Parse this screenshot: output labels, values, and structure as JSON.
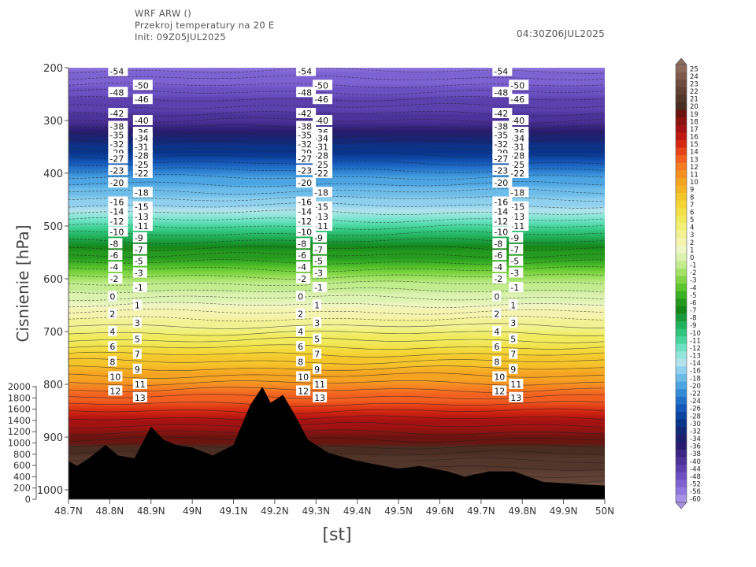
{
  "header": {
    "line1": "WRF ARW ()",
    "line2": "Przekroj temperatury na 20 E",
    "line3": "Init: 09Z05JUL2025",
    "valid_time": "04:30Z06JUL2025"
  },
  "chart_data": {
    "type": "contour cross-section",
    "ylabel": "Cisnienie  [hPa]",
    "xlabel": "[st]",
    "x_ticks": [
      "48.7N",
      "48.8N",
      "48.9N",
      "49N",
      "49.1N",
      "49.2N",
      "49.3N",
      "49.4N",
      "49.5N",
      "49.6N",
      "49.7N",
      "49.8N",
      "49.9N",
      "50N"
    ],
    "xlim": [
      48.7,
      50.0
    ],
    "y_ticks_pressure": [
      "200",
      "300",
      "400",
      "500",
      "600",
      "700",
      "800",
      "900",
      "1000"
    ],
    "ylim_pressure": [
      200,
      1000
    ],
    "y_ticks_height": [
      "2000",
      "1800",
      "1600",
      "1400",
      "1200",
      "1000",
      "800",
      "600",
      "400",
      "200",
      "0"
    ],
    "colorbar": {
      "labels": [
        "25",
        "24",
        "23",
        "22",
        "21",
        "20",
        "19",
        "18",
        "17",
        "16",
        "15",
        "14",
        "13",
        "12",
        "11",
        "10",
        "9",
        "8",
        "7",
        "6",
        "5",
        "4",
        "3",
        "2",
        "1",
        "0",
        "-1",
        "-2",
        "-3",
        "-4",
        "-5",
        "-6",
        "-7",
        "-8",
        "-9",
        "-10",
        "-11",
        "-12",
        "-13",
        "-14",
        "-16",
        "-18",
        "-20",
        "-22",
        "-24",
        "-26",
        "-28",
        "-30",
        "-32",
        "-34",
        "-36",
        "-38",
        "-40",
        "-44",
        "-48",
        "-52",
        "-56",
        "-60"
      ],
      "colors": [
        "#8c6a5a",
        "#7d5a4a",
        "#6e4d3e",
        "#5f4033",
        "#53362a",
        "#4a2d22",
        "#6b1410",
        "#8a1410",
        "#a31212",
        "#bf1a12",
        "#d42a12",
        "#e64418",
        "#f26020",
        "#f57a22",
        "#f58f22",
        "#f5a322",
        "#f5b526",
        "#f5c62c",
        "#f5d536",
        "#f2e046",
        "#f0ea5c",
        "#f2f078",
        "#f2f294",
        "#f4f4b0",
        "#eef6c4",
        "#dcf2b0",
        "#c2ec8e",
        "#a4e266",
        "#82d646",
        "#5cc62e",
        "#3cb024",
        "#259a1e",
        "#168618",
        "#1a9a3a",
        "#22b05a",
        "#30c47c",
        "#48d6a0",
        "#6ce2c2",
        "#92e6dc",
        "#b2e2ec",
        "#8ed0ee",
        "#6cbcea",
        "#4ca4e2",
        "#348ad6",
        "#2270c8",
        "#1458b8",
        "#0c44a2",
        "#0a348a",
        "#142878",
        "#1e2070",
        "#2a1c6e",
        "#3c2684",
        "#4c3298",
        "#5c40ae",
        "#6c50c2",
        "#7e62d2",
        "#9078de",
        "#a692e6"
      ]
    },
    "contour_labels_panel1": [
      "-54",
      "-50",
      "-48",
      "-46",
      "-42",
      "-40",
      "-38",
      "-36",
      "-35",
      "-34",
      "-32",
      "-31",
      "-29",
      "-28",
      "-27",
      "-25",
      "-23",
      "-22",
      "-20",
      "-18",
      "-16",
      "-15",
      "-14",
      "-13",
      "-12",
      "-11",
      "-10",
      "-9",
      "-8",
      "-7",
      "-6",
      "-5",
      "-4",
      "-3",
      "-2",
      "-1",
      "0",
      "1",
      "2",
      "3",
      "4",
      "5",
      "6",
      "7",
      "8",
      "9",
      "10",
      "11",
      "12",
      "13"
    ],
    "sample_values": [
      {
        "pressure": 200,
        "temp": -55
      },
      {
        "pressure": 300,
        "temp": -40
      },
      {
        "pressure": 400,
        "temp": -22
      },
      {
        "pressure": 500,
        "temp": -11
      },
      {
        "pressure": 600,
        "temp": -2
      },
      {
        "pressure": 700,
        "temp": 4
      },
      {
        "pressure": 800,
        "temp": 11
      },
      {
        "pressure": 900,
        "temp": 19
      },
      {
        "pressure": 1000,
        "temp": 23
      }
    ],
    "terrain": [
      {
        "lat": 48.7,
        "pressure": 945
      },
      {
        "lat": 48.72,
        "pressure": 955
      },
      {
        "lat": 48.75,
        "pressure": 940
      },
      {
        "lat": 48.79,
        "pressure": 915
      },
      {
        "lat": 48.82,
        "pressure": 935
      },
      {
        "lat": 48.86,
        "pressure": 940
      },
      {
        "lat": 48.9,
        "pressure": 880
      },
      {
        "lat": 48.93,
        "pressure": 905
      },
      {
        "lat": 48.96,
        "pressure": 915
      },
      {
        "lat": 49.0,
        "pressure": 920
      },
      {
        "lat": 49.05,
        "pressure": 935
      },
      {
        "lat": 49.1,
        "pressure": 915
      },
      {
        "lat": 49.14,
        "pressure": 840
      },
      {
        "lat": 49.17,
        "pressure": 805
      },
      {
        "lat": 49.19,
        "pressure": 835
      },
      {
        "lat": 49.22,
        "pressure": 820
      },
      {
        "lat": 49.25,
        "pressure": 860
      },
      {
        "lat": 49.28,
        "pressure": 905
      },
      {
        "lat": 49.33,
        "pressure": 930
      },
      {
        "lat": 49.4,
        "pressure": 945
      },
      {
        "lat": 49.5,
        "pressure": 960
      },
      {
        "lat": 49.55,
        "pressure": 955
      },
      {
        "lat": 49.62,
        "pressure": 965
      },
      {
        "lat": 49.66,
        "pressure": 975
      },
      {
        "lat": 49.72,
        "pressure": 965
      },
      {
        "lat": 49.78,
        "pressure": 965
      },
      {
        "lat": 49.85,
        "pressure": 985
      },
      {
        "lat": 49.95,
        "pressure": 990
      },
      {
        "lat": 50.0,
        "pressure": 992
      }
    ]
  }
}
